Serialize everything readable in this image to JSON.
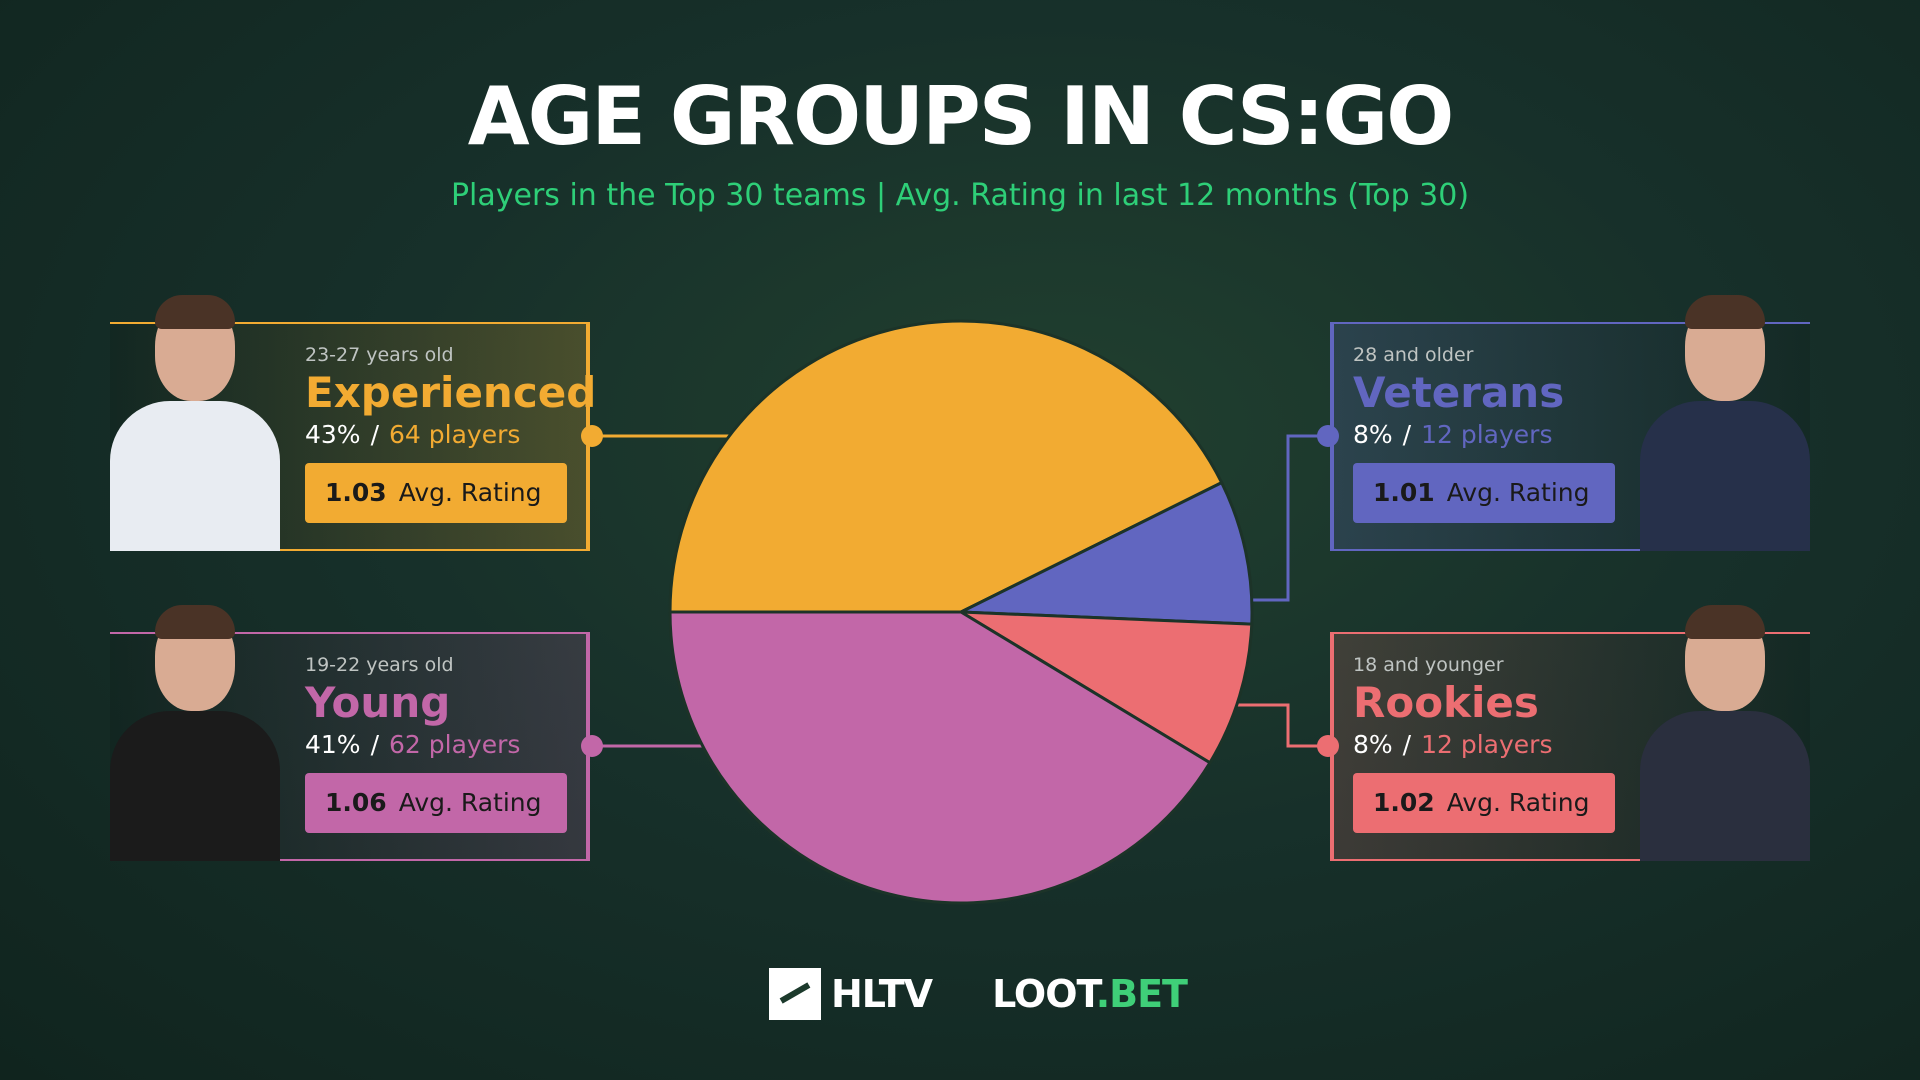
{
  "title": "AGE GROUPS IN CS:GO",
  "subtitle": "Players in the Top 30 teams | Avg. Rating in last 12 months (Top 30)",
  "colors": {
    "experienced": "#f2ab32",
    "veterans": "#6166c0",
    "rookies": "#ec6e72",
    "young": "#c267a8",
    "subtitle": "#2ecf78",
    "background": "#17302a"
  },
  "groups": [
    {
      "key": "experienced",
      "age": "23-27 years old",
      "name": "Experienced",
      "percent": "43%",
      "players": "64 players",
      "rating": "1.03",
      "rating_label": "Avg. Rating"
    },
    {
      "key": "veterans",
      "age": "28 and older",
      "name": "Veterans",
      "percent": "8%",
      "players": "12 players",
      "rating": "1.01",
      "rating_label": "Avg. Rating"
    },
    {
      "key": "young",
      "age": "19-22 years old",
      "name": "Young",
      "percent": "41%",
      "players": "62 players",
      "rating": "1.06",
      "rating_label": "Avg. Rating"
    },
    {
      "key": "rookies",
      "age": "18 and younger",
      "name": "Rookies",
      "percent": "8%",
      "players": "12 players",
      "rating": "1.02",
      "rating_label": "Avg. Rating"
    }
  ],
  "chart_data": {
    "type": "pie",
    "title": "AGE GROUPS IN CS:GO",
    "categories": [
      "Experienced",
      "Veterans",
      "Rookies",
      "Young"
    ],
    "values": [
      64,
      12,
      12,
      62
    ],
    "percentages": [
      43,
      8,
      8,
      41
    ],
    "colors": [
      "#f2ab32",
      "#6166c0",
      "#ec6e72",
      "#c267a8"
    ]
  },
  "logos": {
    "hltv": "HLTV",
    "lootbet_a": "LOOT",
    "lootbet_b": ".BET"
  }
}
